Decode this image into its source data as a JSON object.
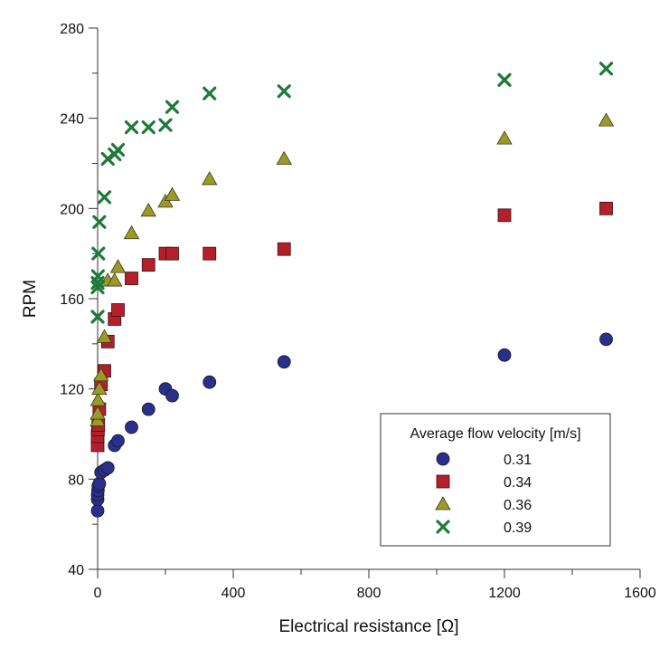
{
  "chart_data": {
    "type": "scatter",
    "title": "",
    "xlabel": "Electrical resistance [Ω]",
    "ylabel": "RPM",
    "xlim": [
      0,
      1600
    ],
    "ylim": [
      40,
      280
    ],
    "x_ticks": [
      0,
      400,
      800,
      1200,
      1600
    ],
    "x_minor_ticks": [
      200,
      600,
      1000,
      1400
    ],
    "y_ticks": [
      40,
      80,
      120,
      160,
      200,
      240,
      280
    ],
    "y_minor_ticks": [
      60,
      100,
      140,
      180,
      220,
      260
    ],
    "grid": false,
    "legend": {
      "title": "Average flow velocity [m/s]",
      "placement": "bottom-right"
    },
    "series": [
      {
        "name": "0.31",
        "marker": "circle",
        "color": "#2b2f8c",
        "points": [
          [
            0,
            66
          ],
          [
            0,
            71
          ],
          [
            0,
            73
          ],
          [
            1,
            75
          ],
          [
            2,
            77
          ],
          [
            5,
            78
          ],
          [
            10,
            83
          ],
          [
            20,
            84
          ],
          [
            30,
            85
          ],
          [
            50,
            95
          ],
          [
            60,
            97
          ],
          [
            100,
            103
          ],
          [
            150,
            111
          ],
          [
            200,
            120
          ],
          [
            220,
            117
          ],
          [
            330,
            123
          ],
          [
            550,
            132
          ],
          [
            1200,
            135
          ],
          [
            1500,
            142
          ]
        ]
      },
      {
        "name": "0.34",
        "marker": "square",
        "color": "#b3202c",
        "points": [
          [
            0,
            95
          ],
          [
            0,
            99
          ],
          [
            1,
            102
          ],
          [
            2,
            104
          ],
          [
            5,
            111
          ],
          [
            10,
            122
          ],
          [
            20,
            128
          ],
          [
            30,
            141
          ],
          [
            50,
            151
          ],
          [
            60,
            155
          ],
          [
            100,
            169
          ],
          [
            150,
            175
          ],
          [
            200,
            180
          ],
          [
            220,
            180
          ],
          [
            330,
            180
          ],
          [
            550,
            182
          ],
          [
            1200,
            197
          ],
          [
            1500,
            200
          ]
        ]
      },
      {
        "name": "0.36",
        "marker": "triangle",
        "color": "#9a9a2a",
        "points": [
          [
            0,
            106
          ],
          [
            0,
            109
          ],
          [
            1,
            115
          ],
          [
            5,
            120
          ],
          [
            10,
            126
          ],
          [
            20,
            143
          ],
          [
            30,
            168
          ],
          [
            50,
            168
          ],
          [
            60,
            174
          ],
          [
            100,
            189
          ],
          [
            150,
            199
          ],
          [
            200,
            203
          ],
          [
            220,
            206
          ],
          [
            330,
            213
          ],
          [
            550,
            222
          ],
          [
            1200,
            231
          ],
          [
            1500,
            239
          ]
        ]
      },
      {
        "name": "0.39",
        "marker": "x",
        "color": "#1f7a3a",
        "points": [
          [
            0,
            152
          ],
          [
            0,
            165
          ],
          [
            0,
            167
          ],
          [
            1,
            170
          ],
          [
            2,
            180
          ],
          [
            5,
            194
          ],
          [
            20,
            205
          ],
          [
            30,
            222
          ],
          [
            50,
            224
          ],
          [
            60,
            226
          ],
          [
            100,
            236
          ],
          [
            150,
            236
          ],
          [
            200,
            237
          ],
          [
            220,
            245
          ],
          [
            330,
            251
          ],
          [
            550,
            252
          ],
          [
            1200,
            257
          ],
          [
            1500,
            262
          ]
        ]
      }
    ]
  }
}
